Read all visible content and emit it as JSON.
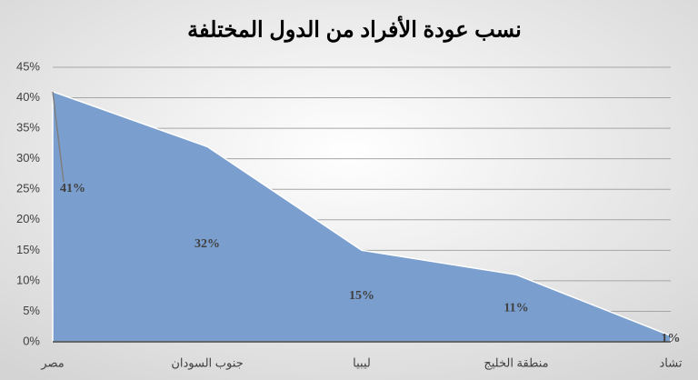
{
  "chart_data": {
    "type": "area",
    "title": "نسب عودة الأفراد من الدول المختلفة",
    "categories": [
      "مصر",
      "جنوب السودان",
      "ليبيا",
      "منطقة الخليج",
      "تشاد"
    ],
    "values": [
      41,
      32,
      15,
      11,
      1
    ],
    "value_labels": [
      "41%",
      "32%",
      "15%",
      "11%",
      "1%"
    ],
    "color": "#7a9fcf",
    "ylim": [
      0,
      45
    ],
    "yticks": [
      {
        "value": 0,
        "label": "0%"
      },
      {
        "value": 5,
        "label": "5%"
      },
      {
        "value": 10,
        "label": "10%"
      },
      {
        "value": 15,
        "label": "15%"
      },
      {
        "value": 20,
        "label": "20%"
      },
      {
        "value": 25,
        "label": "25%"
      },
      {
        "value": 30,
        "label": "30%"
      },
      {
        "value": 35,
        "label": "35%"
      },
      {
        "value": 40,
        "label": "40%"
      },
      {
        "value": 45,
        "label": "45%"
      }
    ],
    "grid": true
  }
}
